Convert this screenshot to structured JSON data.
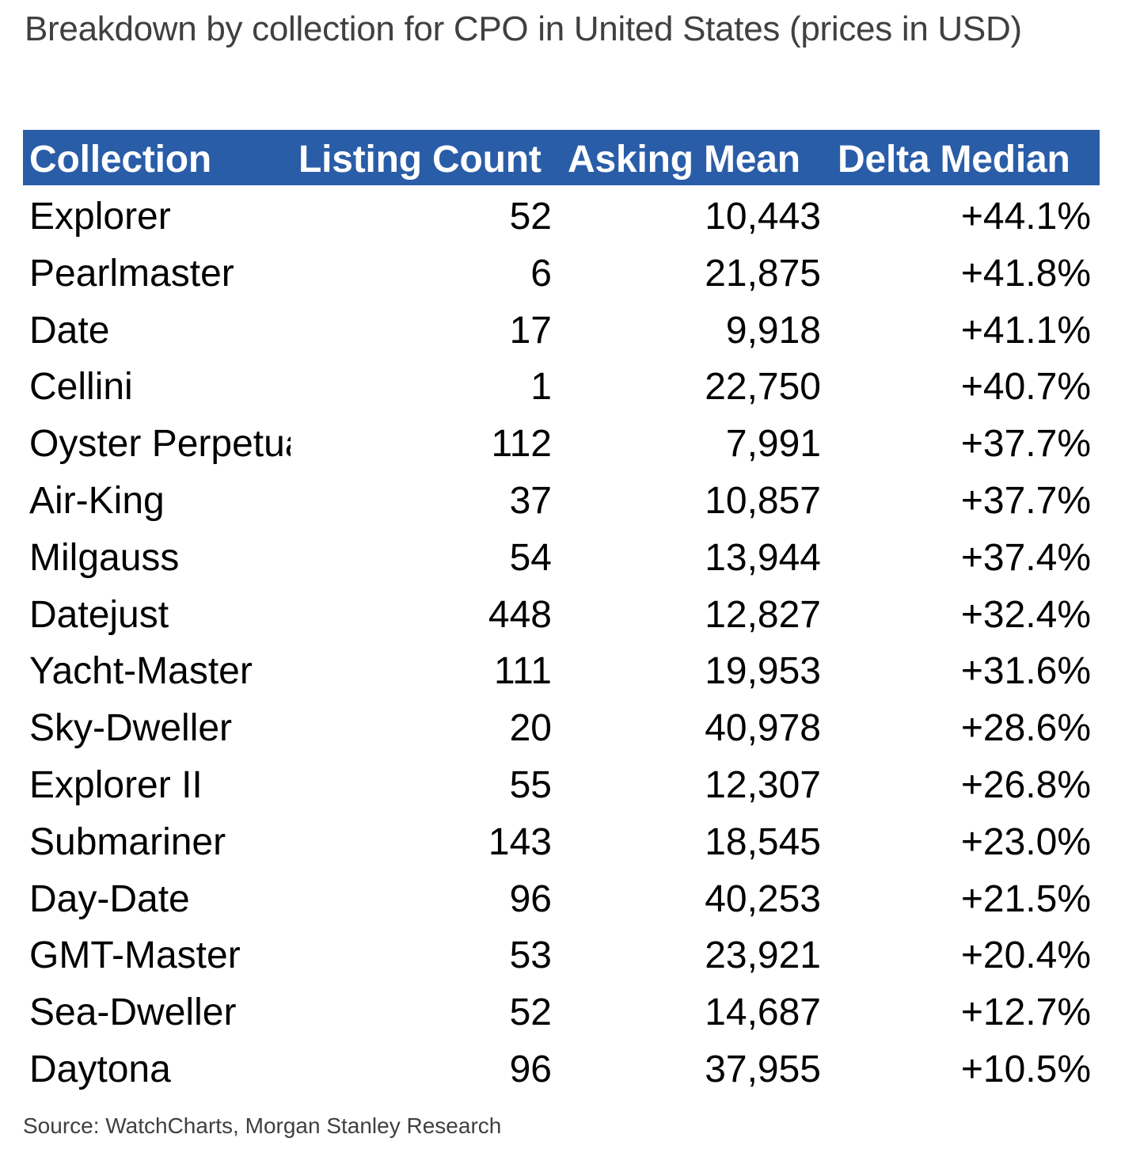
{
  "title": "Breakdown by collection for CPO in United States (prices in USD)",
  "source": "Source: WatchCharts, Morgan Stanley Research",
  "colors": {
    "header_bg": "#2a5da8",
    "header_text": "#ffffff",
    "title_text": "#404040",
    "body_text": "#000000"
  },
  "chart_data": {
    "type": "table",
    "title": "Breakdown by collection for CPO in United States (prices in USD)",
    "columns": [
      "Collection",
      "Listing Count",
      "Asking Mean",
      "Delta Median"
    ],
    "rows": [
      {
        "collection": "Explorer",
        "listing_count": "52",
        "asking_mean": "10,443",
        "delta_median": "+44.1%"
      },
      {
        "collection": "Pearlmaster",
        "listing_count": "6",
        "asking_mean": "21,875",
        "delta_median": "+41.8%"
      },
      {
        "collection": "Date",
        "listing_count": "17",
        "asking_mean": "9,918",
        "delta_median": "+41.1%"
      },
      {
        "collection": "Cellini",
        "listing_count": "1",
        "asking_mean": "22,750",
        "delta_median": "+40.7%"
      },
      {
        "collection": "Oyster Perpetual",
        "listing_count": "112",
        "asking_mean": "7,991",
        "delta_median": "+37.7%"
      },
      {
        "collection": "Air-King",
        "listing_count": "37",
        "asking_mean": "10,857",
        "delta_median": "+37.7%"
      },
      {
        "collection": "Milgauss",
        "listing_count": "54",
        "asking_mean": "13,944",
        "delta_median": "+37.4%"
      },
      {
        "collection": "Datejust",
        "listing_count": "448",
        "asking_mean": "12,827",
        "delta_median": "+32.4%"
      },
      {
        "collection": "Yacht-Master",
        "listing_count": "111",
        "asking_mean": "19,953",
        "delta_median": "+31.6%"
      },
      {
        "collection": "Sky-Dweller",
        "listing_count": "20",
        "asking_mean": "40,978",
        "delta_median": "+28.6%"
      },
      {
        "collection": "Explorer II",
        "listing_count": "55",
        "asking_mean": "12,307",
        "delta_median": "+26.8%"
      },
      {
        "collection": "Submariner",
        "listing_count": "143",
        "asking_mean": "18,545",
        "delta_median": "+23.0%"
      },
      {
        "collection": "Day-Date",
        "listing_count": "96",
        "asking_mean": "40,253",
        "delta_median": "+21.5%"
      },
      {
        "collection": "GMT-Master",
        "listing_count": "53",
        "asking_mean": "23,921",
        "delta_median": "+20.4%"
      },
      {
        "collection": "Sea-Dweller",
        "listing_count": "52",
        "asking_mean": "14,687",
        "delta_median": "+12.7%"
      },
      {
        "collection": "Daytona",
        "listing_count": "96",
        "asking_mean": "37,955",
        "delta_median": "+10.5%"
      }
    ]
  }
}
